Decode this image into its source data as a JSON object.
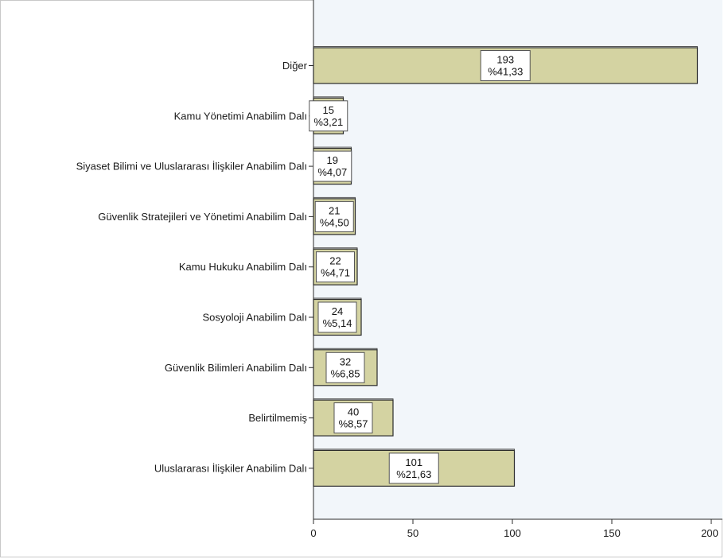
{
  "chart_data": {
    "type": "bar",
    "orientation": "horizontal",
    "title": "",
    "xlabel": "",
    "ylabel": "",
    "xlim": [
      0,
      205
    ],
    "xticks": [
      0,
      50,
      100,
      150,
      200
    ],
    "categories": [
      "Diğer",
      "Kamu Yönetimi Anabilim Dalı",
      "Siyaset Bilimi ve Uluslararası İlişkiler Anabilim Dalı",
      "Güvenlik Stratejileri ve Yönetimi Anabilim Dalı",
      "Kamu Hukuku Anabilim Dalı",
      "Sosyoloji Anabilim Dalı",
      "Güvenlik Bilimleri Anabilim Dalı",
      "Belirtilmemiş",
      "Uluslararası İlişkiler Anabilim Dalı"
    ],
    "values": [
      193,
      15,
      19,
      21,
      22,
      24,
      32,
      40,
      101
    ],
    "percent_labels": [
      "%41,33",
      "%3,21",
      "%4,07",
      "%4,50",
      "%4,71",
      "%5,14",
      "%6,85",
      "%8,57",
      "%21,63"
    ],
    "grid": false,
    "legend": "none",
    "colors": {
      "bar_fill": "#d4d3a2",
      "bar_stroke": "#2b2b2b",
      "plot_background": "#f2f6fa",
      "label_box_fill": "#ffffff"
    }
  }
}
